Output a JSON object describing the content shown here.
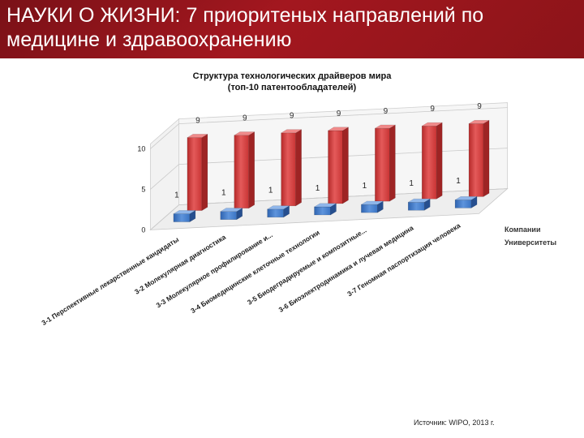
{
  "header": {
    "title_line1": "НАУКИ О ЖИЗНИ: 7 приоритеных направлений по",
    "title_line2": "медицине и здравоохранению"
  },
  "chart_data": {
    "type": "bar",
    "title": "Структура технологических драйверов  мира",
    "subtitle": "(топ-10 патентообладателей)",
    "categories": [
      "3-1 Перспективные лекарственные кандидаты",
      "3-2 Молекулярная диагностика",
      "3-3 Молекулярное профилирование и...",
      "3-4 Биомедицинские клеточные технологии",
      "3-5 Биодеградируемые и композитные...",
      "3-6 Биоэлектродинамика и лучевая медицина",
      "3-7 Геномная паспортизация человека"
    ],
    "series": [
      {
        "name": "Компании",
        "values": [
          9,
          9,
          9,
          9,
          9,
          9,
          9
        ],
        "color": "#d13b3b"
      },
      {
        "name": "Университеты",
        "values": [
          1,
          1,
          1,
          1,
          1,
          1,
          1
        ],
        "color": "#3d78c9"
      }
    ],
    "yticks": [
      "0",
      "5",
      "10"
    ],
    "ylim": [
      0,
      10
    ],
    "grid": true,
    "legend": "right"
  },
  "footer": {
    "source": "Источник: WIPO, 2013 г."
  }
}
